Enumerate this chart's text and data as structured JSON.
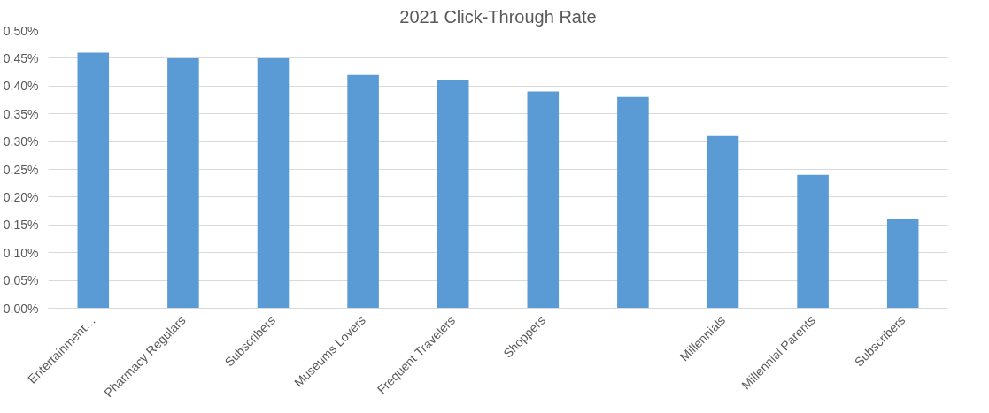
{
  "chart_data": {
    "type": "bar",
    "title": "2021 Click-Through Rate",
    "categories": [
      "Entertainment…",
      "Pharmacy Regulars",
      "Subscribers",
      "Museums Lovers",
      "Frequent Travelers",
      "Shoppers",
      null,
      "Millennials",
      "Millennial Parents",
      "Subscribers"
    ],
    "values": [
      0.46,
      0.45,
      0.45,
      0.42,
      0.41,
      0.39,
      0.38,
      0.31,
      0.24,
      0.16
    ],
    "color": "#5b9bd5",
    "ylim": [
      0,
      0.5
    ],
    "yticks": [
      {
        "value": 0,
        "label": "0.00%"
      },
      {
        "value": 0.05,
        "label": "0.05%"
      },
      {
        "value": 0.1,
        "label": "0.10%"
      },
      {
        "value": 0.15,
        "label": "0.15%"
      },
      {
        "value": 0.2,
        "label": "0.20%"
      },
      {
        "value": 0.25,
        "label": "0.25%"
      },
      {
        "value": 0.3,
        "label": "0.30%"
      },
      {
        "value": 0.35,
        "label": "0.35%"
      },
      {
        "value": 0.4,
        "label": "0.40%"
      },
      {
        "value": 0.45,
        "label": "0.45%"
      },
      {
        "value": 0.5,
        "label": "0.50%"
      }
    ],
    "grid": "y"
  }
}
